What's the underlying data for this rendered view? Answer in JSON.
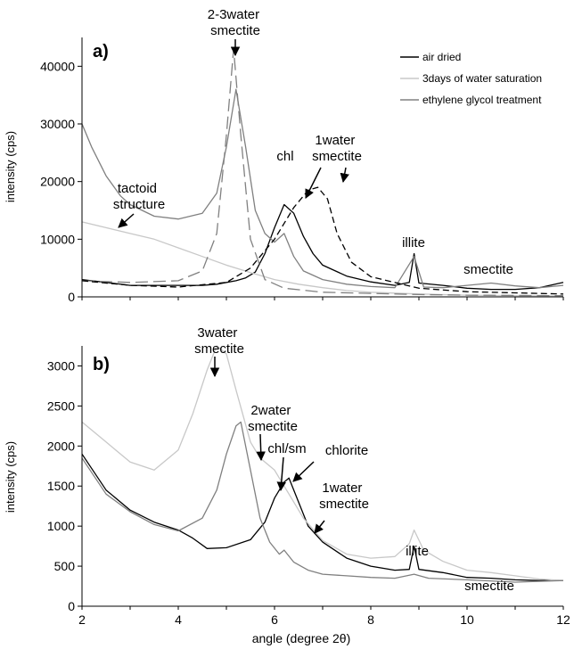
{
  "chart_data": [
    {
      "panel": "a)",
      "type": "line",
      "ylabel": "intensity (cps)",
      "xlim": [
        2,
        12
      ],
      "ylim": [
        0,
        45000
      ],
      "yticks": [
        0,
        10000,
        20000,
        30000,
        40000
      ],
      "legend": {
        "placement": "top-right",
        "entries": [
          "air dried",
          "3days of water saturation",
          "ethylene glycol treatment"
        ]
      },
      "series": [
        {
          "name": "air dried",
          "color": "#000000",
          "dash": "solid",
          "points": [
            [
              2,
              3000
            ],
            [
              2.5,
              2500
            ],
            [
              3,
              2000
            ],
            [
              3.5,
              2000
            ],
            [
              4,
              2000
            ],
            [
              4.5,
              2000
            ],
            [
              4.8,
              2200
            ],
            [
              5.0,
              2500
            ],
            [
              5.2,
              2800
            ],
            [
              5.4,
              3300
            ],
            [
              5.6,
              4300
            ],
            [
              5.8,
              7500
            ],
            [
              6.0,
              12000
            ],
            [
              6.2,
              16000
            ],
            [
              6.4,
              14500
            ],
            [
              6.6,
              10500
            ],
            [
              6.8,
              7500
            ],
            [
              7.0,
              5500
            ],
            [
              7.5,
              3600
            ],
            [
              8.0,
              2600
            ],
            [
              8.5,
              2000
            ],
            [
              8.8,
              2500
            ],
            [
              8.9,
              7500
            ],
            [
              9.0,
              2400
            ],
            [
              9.5,
              2000
            ],
            [
              10,
              1500
            ],
            [
              10.5,
              1300
            ],
            [
              11,
              1300
            ],
            [
              11.5,
              1600
            ],
            [
              12,
              2500
            ]
          ]
        },
        {
          "name": "3days of water saturation",
          "color": "#c8c8c8",
          "dash": "solid",
          "points": [
            [
              2,
              13000
            ],
            [
              2.5,
              12000
            ],
            [
              3,
              11000
            ],
            [
              3.5,
              10000
            ],
            [
              4,
              8500
            ],
            [
              4.5,
              7000
            ],
            [
              5,
              5500
            ],
            [
              5.5,
              4200
            ],
            [
              6,
              3000
            ],
            [
              6.5,
              2200
            ],
            [
              7,
              1600
            ],
            [
              7.5,
              1100
            ],
            [
              8,
              800
            ],
            [
              9,
              500
            ],
            [
              10,
              300
            ],
            [
              11,
              200
            ],
            [
              12,
              150
            ]
          ]
        },
        {
          "name": "ethylene glycol treatment",
          "color": "#808080",
          "dash": "solid",
          "points": [
            [
              2,
              30000
            ],
            [
              2.2,
              26000
            ],
            [
              2.5,
              21000
            ],
            [
              2.8,
              17500
            ],
            [
              3,
              16000
            ],
            [
              3.5,
              14000
            ],
            [
              4,
              13500
            ],
            [
              4.5,
              14500
            ],
            [
              4.8,
              18000
            ],
            [
              5.0,
              26000
            ],
            [
              5.2,
              36000
            ],
            [
              5.4,
              26000
            ],
            [
              5.6,
              15000
            ],
            [
              5.8,
              11000
            ],
            [
              6.0,
              9500
            ],
            [
              6.2,
              11000
            ],
            [
              6.4,
              7000
            ],
            [
              6.6,
              4500
            ],
            [
              7,
              3000
            ],
            [
              7.5,
              2200
            ],
            [
              8,
              1800
            ],
            [
              8.5,
              1600
            ],
            [
              8.9,
              7000
            ],
            [
              9.1,
              1700
            ],
            [
              9.5,
              1600
            ],
            [
              10,
              2000
            ],
            [
              10.5,
              2400
            ],
            [
              11,
              1900
            ],
            [
              11.5,
              1600
            ],
            [
              12,
              2000
            ]
          ]
        },
        {
          "name": "",
          "color": "#808080",
          "dash": "long-dash",
          "points": [
            [
              2,
              2800
            ],
            [
              3,
              2500
            ],
            [
              4,
              2800
            ],
            [
              4.5,
              4500
            ],
            [
              4.8,
              11000
            ],
            [
              5.0,
              28000
            ],
            [
              5.15,
              43000
            ],
            [
              5.3,
              28000
            ],
            [
              5.5,
              10000
            ],
            [
              5.8,
              3000
            ],
            [
              6.2,
              1500
            ],
            [
              7,
              800
            ],
            [
              8,
              600
            ],
            [
              9,
              400
            ],
            [
              10,
              300
            ],
            [
              12,
              200
            ]
          ]
        },
        {
          "name": "",
          "color": "#000000",
          "dash": "dash",
          "points": [
            [
              2,
              2800
            ],
            [
              3,
              2000
            ],
            [
              4,
              1700
            ],
            [
              5,
              2500
            ],
            [
              5.5,
              5000
            ],
            [
              6.0,
              10000
            ],
            [
              6.4,
              15500
            ],
            [
              6.7,
              18500
            ],
            [
              6.9,
              19000
            ],
            [
              7.1,
              17000
            ],
            [
              7.3,
              11000
            ],
            [
              7.6,
              6000
            ],
            [
              8,
              3500
            ],
            [
              9,
              1500
            ],
            [
              10,
              900
            ],
            [
              11,
              700
            ],
            [
              12,
              500
            ]
          ]
        }
      ],
      "annotations": [
        "2-3water smectite",
        "chl",
        "1water smectite",
        "tactoid structure",
        "illite",
        "smectite"
      ]
    },
    {
      "panel": "b)",
      "type": "line",
      "xlabel": "angle (degree 2θ)",
      "ylabel": "intensity (cps)",
      "xlim": [
        2,
        12
      ],
      "ylim": [
        0,
        3250
      ],
      "xticks": [
        2,
        4,
        6,
        8,
        10,
        12
      ],
      "yticks": [
        0,
        500,
        1000,
        1500,
        2000,
        2500,
        3000
      ],
      "series": [
        {
          "name": "air dried",
          "color": "#000000",
          "dash": "solid",
          "points": [
            [
              2,
              1900
            ],
            [
              2.5,
              1450
            ],
            [
              3,
              1200
            ],
            [
              3.5,
              1050
            ],
            [
              4,
              950
            ],
            [
              4.3,
              850
            ],
            [
              4.6,
              720
            ],
            [
              5,
              730
            ],
            [
              5.5,
              830
            ],
            [
              5.8,
              1050
            ],
            [
              6.0,
              1350
            ],
            [
              6.2,
              1550
            ],
            [
              6.3,
              1600
            ],
            [
              6.5,
              1300
            ],
            [
              6.7,
              1000
            ],
            [
              7,
              800
            ],
            [
              7.5,
              600
            ],
            [
              8,
              500
            ],
            [
              8.5,
              450
            ],
            [
              8.8,
              460
            ],
            [
              8.9,
              750
            ],
            [
              9.0,
              460
            ],
            [
              9.5,
              420
            ],
            [
              10,
              360
            ],
            [
              10.5,
              350
            ],
            [
              11,
              330
            ],
            [
              11.5,
              320
            ],
            [
              12,
              320
            ]
          ]
        },
        {
          "name": "3days of water saturation",
          "color": "#c8c8c8",
          "dash": "solid",
          "points": [
            [
              2,
              2300
            ],
            [
              2.5,
              2050
            ],
            [
              3,
              1800
            ],
            [
              3.5,
              1700
            ],
            [
              4,
              1950
            ],
            [
              4.3,
              2400
            ],
            [
              4.6,
              2950
            ],
            [
              4.8,
              3250
            ],
            [
              5.0,
              3150
            ],
            [
              5.2,
              2700
            ],
            [
              5.5,
              2050
            ],
            [
              5.7,
              1850
            ],
            [
              6.0,
              1700
            ],
            [
              6.3,
              1400
            ],
            [
              6.6,
              1100
            ],
            [
              7,
              820
            ],
            [
              7.5,
              650
            ],
            [
              8,
              600
            ],
            [
              8.5,
              620
            ],
            [
              8.8,
              780
            ],
            [
              8.9,
              950
            ],
            [
              9.1,
              700
            ],
            [
              9.5,
              560
            ],
            [
              10,
              450
            ],
            [
              10.5,
              420
            ],
            [
              11,
              380
            ],
            [
              11.5,
              340
            ],
            [
              12,
              320
            ]
          ]
        },
        {
          "name": "ethylene glycol treatment",
          "color": "#808080",
          "dash": "solid",
          "points": [
            [
              2,
              1850
            ],
            [
              2.5,
              1400
            ],
            [
              3,
              1180
            ],
            [
              3.5,
              1020
            ],
            [
              4,
              940
            ],
            [
              4.5,
              1100
            ],
            [
              4.8,
              1450
            ],
            [
              5.0,
              1900
            ],
            [
              5.2,
              2250
            ],
            [
              5.3,
              2300
            ],
            [
              5.5,
              1700
            ],
            [
              5.7,
              1100
            ],
            [
              5.9,
              800
            ],
            [
              6.1,
              650
            ],
            [
              6.2,
              700
            ],
            [
              6.4,
              550
            ],
            [
              6.7,
              450
            ],
            [
              7,
              400
            ],
            [
              7.5,
              380
            ],
            [
              8,
              360
            ],
            [
              8.5,
              350
            ],
            [
              8.9,
              400
            ],
            [
              9.2,
              350
            ],
            [
              10,
              330
            ],
            [
              11,
              300
            ],
            [
              12,
              320
            ]
          ]
        }
      ],
      "annotations": [
        "3water smectite",
        "2water smectite",
        "chl/sm",
        "chlorite",
        "1water smectite",
        "illite",
        "smectite"
      ]
    }
  ]
}
